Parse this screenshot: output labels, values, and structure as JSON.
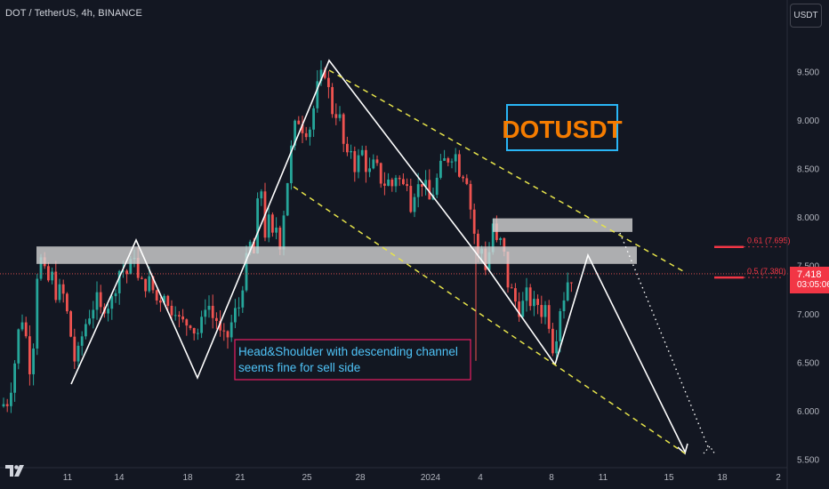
{
  "header": {
    "symbol_title": "DOT / TetherUS, 4h, BINANCE",
    "currency_button": "USDT"
  },
  "price_badge": {
    "price": "7.418",
    "countdown": "03:05:06"
  },
  "icons": {
    "logo": "tradingview-logo-icon"
  },
  "colors": {
    "background": "#131722",
    "bull": "#26a69a",
    "bear": "#ef5350",
    "pattern": "#ffffff",
    "channel": "#e6e34a",
    "zone": "#d9d9d9",
    "accent_red": "#f23645",
    "title_orange": "#f57c00",
    "title_box": "#29b6f6",
    "note_text": "#4fc3f7",
    "note_border": "#e91e63"
  },
  "chart_data": {
    "type": "candlestick",
    "title": "DOTUSDT",
    "timeframe": "4h",
    "x_tick_labels": [
      "11",
      "14",
      "18",
      "21",
      "25",
      "28",
      "2024",
      "4",
      "8",
      "11",
      "15",
      "18",
      "2"
    ],
    "y_tick_labels": [
      "9.500",
      "9.000",
      "8.500",
      "8.000",
      "7.500",
      "7.000",
      "6.500",
      "6.000",
      "5.500"
    ],
    "ylim": [
      5.45,
      10.1
    ],
    "last_price": 7.418,
    "price_path": [
      [
        0,
        6.05
      ],
      [
        8,
        6.1
      ],
      [
        14,
        6.35
      ],
      [
        18,
        6.6
      ],
      [
        22,
        6.9
      ],
      [
        26,
        7.0
      ],
      [
        32,
        6.55
      ],
      [
        36,
        6.35
      ],
      [
        40,
        7.3
      ],
      [
        44,
        7.6
      ],
      [
        48,
        7.5
      ],
      [
        52,
        7.3
      ],
      [
        58,
        7.4
      ],
      [
        64,
        7.2
      ],
      [
        70,
        7.25
      ],
      [
        74,
        7.05
      ],
      [
        78,
        6.9
      ],
      [
        82,
        6.6
      ],
      [
        86,
        6.45
      ],
      [
        90,
        6.7
      ],
      [
        96,
        6.9
      ],
      [
        102,
        7.05
      ],
      [
        108,
        7.15
      ],
      [
        114,
        7.0
      ],
      [
        120,
        7.2
      ],
      [
        124,
        7.0
      ],
      [
        128,
        7.3
      ],
      [
        132,
        7.35
      ],
      [
        136,
        7.55
      ],
      [
        140,
        7.4
      ],
      [
        146,
        7.45
      ],
      [
        152,
        7.7
      ],
      [
        156,
        7.25
      ],
      [
        160,
        7.3
      ],
      [
        166,
        7.35
      ],
      [
        172,
        7.25
      ],
      [
        178,
        7.1
      ],
      [
        184,
        7.3
      ],
      [
        190,
        7.0
      ],
      [
        196,
        7.15
      ],
      [
        202,
        6.9
      ],
      [
        208,
        6.9
      ],
      [
        214,
        6.95
      ],
      [
        220,
        6.8
      ],
      [
        226,
        6.85
      ],
      [
        232,
        7.2
      ],
      [
        236,
        7.05
      ],
      [
        240,
        6.95
      ],
      [
        244,
        6.95
      ],
      [
        248,
        6.75
      ],
      [
        254,
        6.7
      ],
      [
        258,
        6.85
      ],
      [
        262,
        6.95
      ],
      [
        266,
        7.05
      ],
      [
        270,
        7.1
      ],
      [
        274,
        7.45
      ],
      [
        278,
        7.55
      ],
      [
        282,
        7.75
      ],
      [
        286,
        7.6
      ],
      [
        290,
        8.15
      ],
      [
        294,
        8.3
      ],
      [
        298,
        7.85
      ],
      [
        302,
        7.95
      ],
      [
        306,
        7.75
      ],
      [
        310,
        7.95
      ],
      [
        314,
        7.7
      ],
      [
        318,
        8.0
      ],
      [
        322,
        8.3
      ],
      [
        326,
        8.6
      ],
      [
        330,
        8.85
      ],
      [
        334,
        9.0
      ],
      [
        338,
        9.05
      ],
      [
        342,
        8.85
      ],
      [
        346,
        9.0
      ],
      [
        350,
        8.9
      ],
      [
        354,
        9.25
      ],
      [
        358,
        9.35
      ],
      [
        362,
        9.45
      ],
      [
        366,
        9.55
      ],
      [
        370,
        9.25
      ],
      [
        374,
        9.1
      ],
      [
        378,
        9.1
      ],
      [
        382,
        9.0
      ],
      [
        386,
        8.75
      ],
      [
        390,
        8.55
      ],
      [
        394,
        8.75
      ],
      [
        398,
        8.55
      ],
      [
        402,
        8.55
      ],
      [
        406,
        8.7
      ],
      [
        410,
        8.6
      ],
      [
        414,
        8.45
      ],
      [
        418,
        8.45
      ],
      [
        422,
        8.6
      ],
      [
        426,
        8.35
      ],
      [
        430,
        8.45
      ],
      [
        434,
        8.3
      ],
      [
        438,
        8.4
      ],
      [
        442,
        8.3
      ],
      [
        446,
        8.5
      ],
      [
        450,
        8.35
      ],
      [
        454,
        8.3
      ],
      [
        458,
        8.45
      ],
      [
        462,
        8.15
      ],
      [
        466,
        8.3
      ],
      [
        470,
        8.3
      ],
      [
        474,
        8.4
      ],
      [
        478,
        8.3
      ],
      [
        482,
        8.15
      ],
      [
        486,
        8.25
      ],
      [
        490,
        8.35
      ],
      [
        494,
        8.45
      ],
      [
        498,
        8.55
      ],
      [
        502,
        8.6
      ],
      [
        506,
        8.65
      ],
      [
        510,
        8.7
      ],
      [
        514,
        8.6
      ],
      [
        518,
        8.45
      ],
      [
        522,
        8.5
      ],
      [
        526,
        8.4
      ],
      [
        530,
        8.0
      ],
      [
        534,
        7.8
      ],
      [
        538,
        7.55
      ],
      [
        542,
        7.7
      ],
      [
        546,
        7.5
      ],
      [
        550,
        7.65
      ],
      [
        554,
        7.95
      ],
      [
        558,
        7.7
      ],
      [
        562,
        7.75
      ],
      [
        566,
        7.65
      ],
      [
        570,
        7.35
      ],
      [
        574,
        7.25
      ],
      [
        578,
        7.15
      ],
      [
        582,
        7.1
      ],
      [
        586,
        7.05
      ],
      [
        590,
        7.15
      ],
      [
        594,
        7.2
      ],
      [
        598,
        7.1
      ],
      [
        602,
        7.05
      ],
      [
        606,
        7.15
      ],
      [
        610,
        7.0
      ],
      [
        614,
        7.1
      ],
      [
        618,
        6.9
      ],
      [
        622,
        6.65
      ],
      [
        626,
        6.85
      ],
      [
        630,
        7.1
      ],
      [
        634,
        7.2
      ],
      [
        638,
        7.35
      ],
      [
        642,
        7.4
      ],
      [
        646,
        7.42
      ]
    ],
    "levels": {
      "resistance_zone": [
        7.52,
        7.7
      ],
      "upper_zone": [
        7.85,
        7.99
      ],
      "fib": [
        {
          "ratio": "0.61",
          "price": 7.695,
          "label": "0.61 (7.695)"
        },
        {
          "ratio": "0.5",
          "price": 7.38,
          "label": "0.5 (7.380)"
        }
      ]
    },
    "pattern": "Head&Shoulder",
    "annotation": "Head&Shoulder  with descending channel\nseems fine for sell side",
    "annotation_lines": [
      "Head&Shoulder  with descending channel",
      "seems fine for sell side"
    ]
  }
}
